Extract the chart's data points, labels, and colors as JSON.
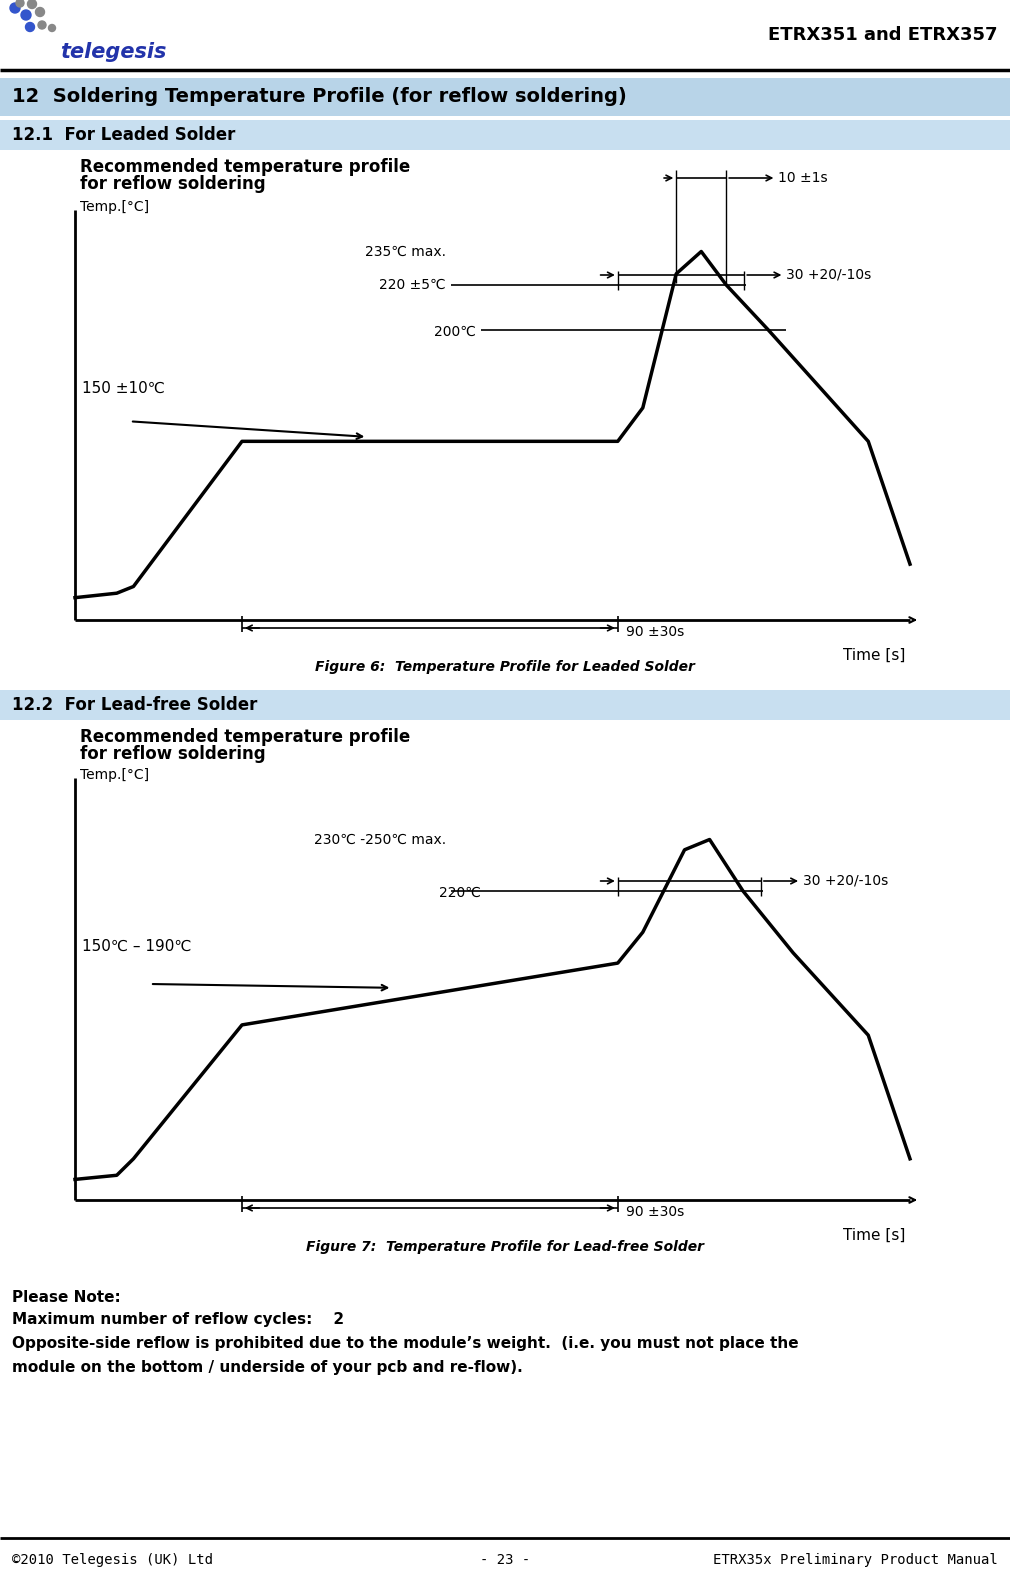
{
  "header_title": "ETRX351 and ETRX357",
  "section_title": "12  Soldering Temperature Profile (for reflow soldering)",
  "sub1_title": "12.1  For Leaded Solder",
  "sub2_title": "12.2  For Lead-free Solder",
  "chart1_subtitle1": "Recommended temperature profile",
  "chart1_subtitle2": "for reflow soldering",
  "chart1_ylabel": "Temp.[°C]",
  "chart1_xlabel": "Time [s]",
  "chart1_labels": {
    "235C": "235℃ max.",
    "220C": "220 ±5℃",
    "200C": "200℃",
    "150C": "150 ±10℃",
    "90s": "90 ±30s",
    "10s": "10 ±1s",
    "30s": "30 +20/-10s"
  },
  "chart2_subtitle1": "Recommended temperature profile",
  "chart2_subtitle2": "for reflow soldering",
  "chart2_ylabel": "Temp.[°C]",
  "chart2_xlabel": "Time [s]",
  "chart2_labels": {
    "230_250C": "230℃ -250℃ max.",
    "220C": "220℃",
    "150_190C": "150℃ – 190℃",
    "90s": "90 ±30s",
    "30s": "30 +20/-10s"
  },
  "fig1_caption": "Figure 6:  Temperature Profile for Leaded Solder",
  "fig2_caption": "Figure 7:  Temperature Profile for Lead-free Solder",
  "note_title": "Please Note:",
  "note_line1": "Maximum number of reflow cycles:    2",
  "note_line2": "Opposite-side reflow is prohibited due to the module’s weight.  (i.e. you must not place the",
  "note_line3": "module on the bottom / underside of your pcb and re-flow).",
  "footer_left": "©2010 Telegesis (UK) Ltd",
  "footer_center": "- 23 -",
  "footer_right": "ETRX35x Preliminary Product Manual",
  "section_bg": "#b8d4e8",
  "sub_bg": "#c8dff0"
}
